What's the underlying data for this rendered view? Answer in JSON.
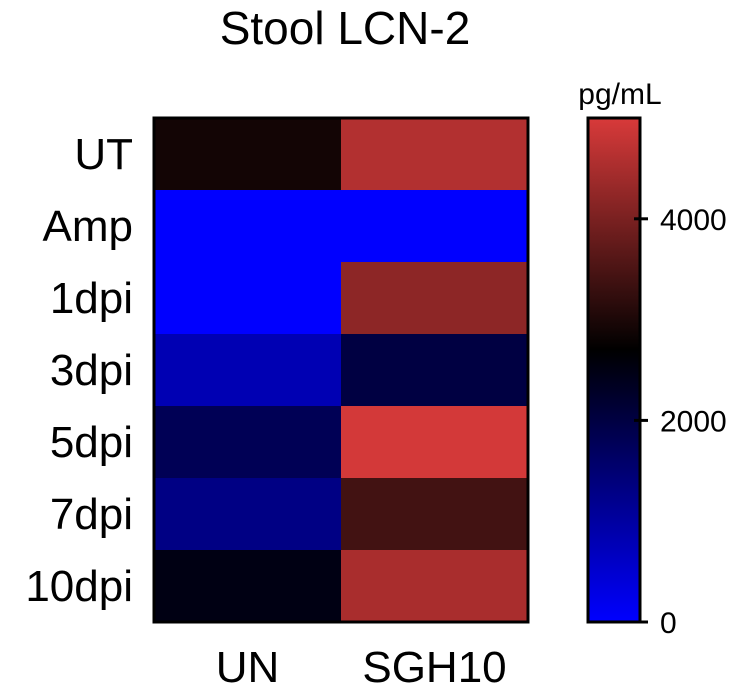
{
  "chart_data": {
    "type": "heatmap",
    "title": "Stool LCN-2",
    "rows": [
      "UT",
      "Amp",
      "1dpi",
      "3dpi",
      "5dpi",
      "7dpi",
      "10dpi"
    ],
    "columns": [
      "UN",
      "SGH10"
    ],
    "values": [
      [
        2900,
        4600
      ],
      [
        0,
        0
      ],
      [
        0,
        4200
      ],
      [
        800,
        2000
      ],
      [
        1800,
        4950
      ],
      [
        1300,
        3400
      ],
      [
        2500,
        4500
      ]
    ],
    "colorbar": {
      "label": "pg/mL",
      "min": 0,
      "max": 5000,
      "ticks": [
        0,
        2000,
        4000
      ],
      "stops": [
        {
          "value": 0,
          "color": "#0000ff"
        },
        {
          "value": 2700,
          "color": "#000000"
        },
        {
          "value": 5000,
          "color": "#d83a3a"
        }
      ]
    }
  }
}
